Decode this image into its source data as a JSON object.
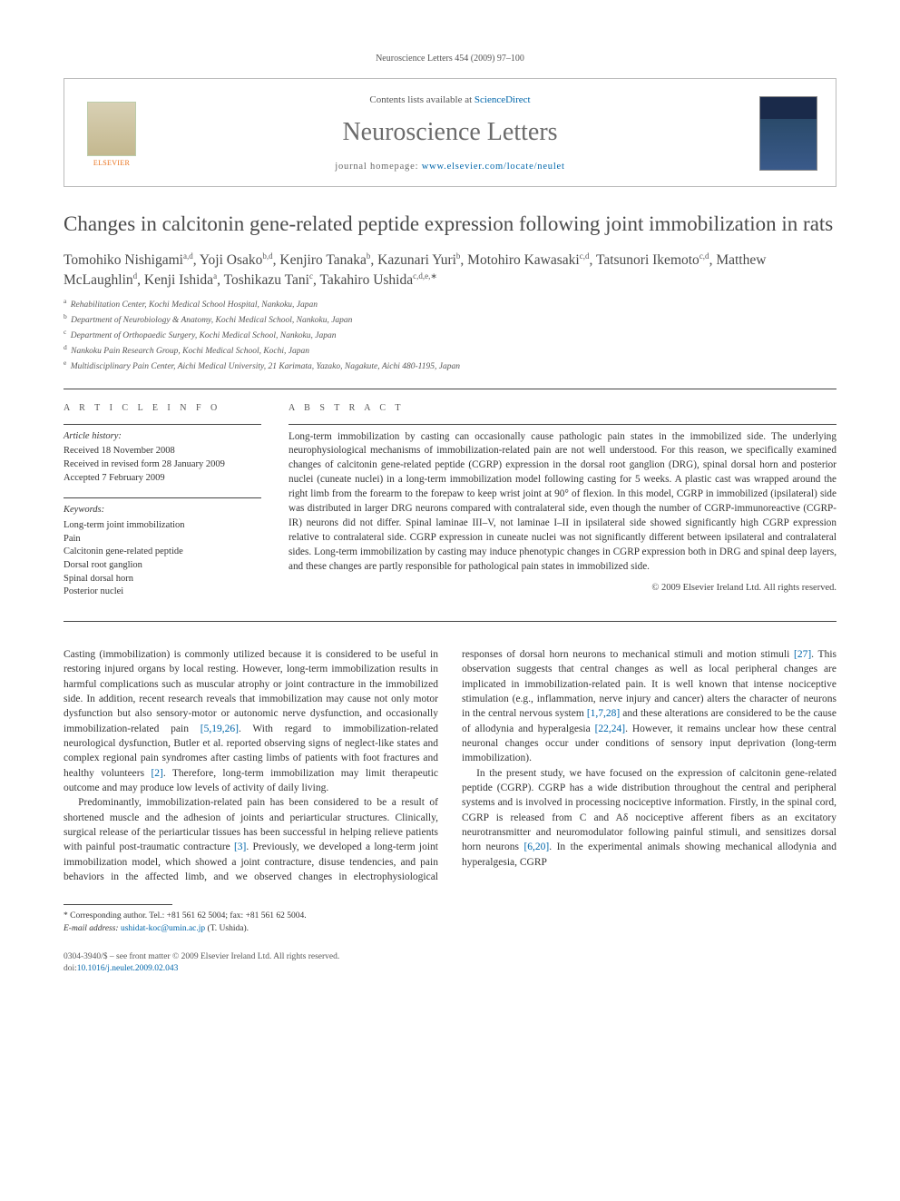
{
  "header_citation": "Neuroscience Letters 454 (2009) 97–100",
  "journal_box": {
    "contents_prefix": "Contents lists available at ",
    "contents_link": "ScienceDirect",
    "journal_name": "Neuroscience Letters",
    "homepage_prefix": "journal homepage: ",
    "homepage_link": "www.elsevier.com/locate/neulet",
    "publisher_label": "ELSEVIER"
  },
  "title": "Changes in calcitonin gene-related peptide expression following joint immobilization in rats",
  "authors_html": "Tomohiko Nishigami|a,d|, Yoji Osako|b,d|, Kenjiro Tanaka|b|, Kazunari Yuri|b|, Motohiro Kawasaki|c,d|, Tatsunori Ikemoto|c,d|, Matthew McLaughlin|d|, Kenji Ishida|a|, Toshikazu Tani|c|, Takahiro Ushida|c,d,e,*|",
  "affiliations": [
    {
      "sup": "a",
      "text": "Rehabilitation Center, Kochi Medical School Hospital, Nankoku, Japan"
    },
    {
      "sup": "b",
      "text": "Department of Neurobiology & Anatomy, Kochi Medical School, Nankoku, Japan"
    },
    {
      "sup": "c",
      "text": "Department of Orthopaedic Surgery, Kochi Medical School, Nankoku, Japan"
    },
    {
      "sup": "d",
      "text": "Nankoku Pain Research Group, Kochi Medical School, Kochi, Japan"
    },
    {
      "sup": "e",
      "text": "Multidisciplinary Pain Center, Aichi Medical University, 21 Karimata, Yazako, Nagakute, Aichi 480-1195, Japan"
    }
  ],
  "article_info": {
    "header": "A R T I C L E   I N F O",
    "history_label": "Article history:",
    "history": [
      "Received 18 November 2008",
      "Received in revised form 28 January 2009",
      "Accepted 7 February 2009"
    ],
    "keywords_label": "Keywords:",
    "keywords": [
      "Long-term joint immobilization",
      "Pain",
      "Calcitonin gene-related peptide",
      "Dorsal root ganglion",
      "Spinal dorsal horn",
      "Posterior nuclei"
    ]
  },
  "abstract": {
    "header": "A B S T R A C T",
    "text": "Long-term immobilization by casting can occasionally cause pathologic pain states in the immobilized side. The underlying neurophysiological mechanisms of immobilization-related pain are not well understood. For this reason, we specifically examined changes of calcitonin gene-related peptide (CGRP) expression in the dorsal root ganglion (DRG), spinal dorsal horn and posterior nuclei (cuneate nuclei) in a long-term immobilization model following casting for 5 weeks. A plastic cast was wrapped around the right limb from the forearm to the forepaw to keep wrist joint at 90° of flexion. In this model, CGRP in immobilized (ipsilateral) side was distributed in larger DRG neurons compared with contralateral side, even though the number of CGRP-immunoreactive (CGRP-IR) neurons did not differ. Spinal laminae III–V, not laminae I–II in ipsilateral side showed significantly high CGRP expression relative to contralateral side. CGRP expression in cuneate nuclei was not significantly different between ipsilateral and contralateral sides. Long-term immobilization by casting may induce phenotypic changes in CGRP expression both in DRG and spinal deep layers, and these changes are partly responsible for pathological pain states in immobilized side.",
    "copyright": "© 2009 Elsevier Ireland Ltd. All rights reserved."
  },
  "body": {
    "p1": "Casting (immobilization) is commonly utilized because it is considered to be useful in restoring injured organs by local resting. However, long-term immobilization results in harmful complications such as muscular atrophy or joint contracture in the immobilized side. In addition, recent research reveals that immobilization may cause not only motor dysfunction but also sensory-motor or autonomic nerve dysfunction, and occasionally immobilization-related pain ",
    "c1": "[5,19,26]",
    "p1b": ". With regard to immobilization-related neurological dysfunction, Butler et al. reported observing signs of neglect-like states and complex regional pain syndromes after casting limbs of patients with foot fractures and healthy volunteers ",
    "c2": "[2]",
    "p1c": ". Therefore, long-term immobilization may limit therapeutic outcome and may produce low levels of activity of daily living.",
    "p2": "Predominantly, immobilization-related pain has been considered to be a result of shortened muscle and the adhesion of joints and periarticular structures. Clinically, surgical release of the periarticular tissues has been successful in helping relieve patients with painful post-traumatic contracture ",
    "c3": "[3]",
    "p2b": ". Previously, we developed a long-term joint immobilization model, which showed a joint contracture, disuse tendencies, and pain behaviors in the affected limb, and we observed changes in electrophysiological responses of dorsal horn neurons to mechanical stimuli and motion stimuli ",
    "c4": "[27]",
    "p2c": ". This observation suggests that central changes as well as local peripheral changes are implicated in immobilization-related pain. It is well known that intense nociceptive stimulation (e.g., inflammation, nerve injury and cancer) alters the character of neurons in the central nervous system ",
    "c5": "[1,7,28]",
    "p2d": " and these alterations are considered to be the cause of allodynia and hyperalgesia ",
    "c6": "[22,24]",
    "p2e": ". However, it remains unclear how these central neuronal changes occur under conditions of sensory input deprivation (long-term immobilization).",
    "p3": "In the present study, we have focused on the expression of calcitonin gene-related peptide (CGRP). CGRP has a wide distribution throughout the central and peripheral systems and is involved in processing nociceptive information. Firstly, in the spinal cord, CGRP is released from C and Aδ nociceptive afferent fibers as an excitatory neurotransmitter and neuromodulator following painful stimuli, and sensitizes dorsal horn neurons ",
    "c7": "[6,20]",
    "p3b": ". In the experimental animals showing mechanical allodynia and hyperalgesia, CGRP"
  },
  "footnote": {
    "corr": "* Corresponding author. Tel.: +81 561 62 5004; fax: +81 561 62 5004.",
    "email_label": "E-mail address: ",
    "email": "ushidat-koc@umin.ac.jp",
    "email_suffix": " (T. Ushida)."
  },
  "footer": {
    "left1": "0304-3940/$ – see front matter © 2009 Elsevier Ireland Ltd. All rights reserved.",
    "left2_prefix": "doi:",
    "left2_link": "10.1016/j.neulet.2009.02.043"
  },
  "colors": {
    "link": "#0066aa",
    "text": "#333333",
    "heading": "#4a4a4a",
    "elsevier": "#e9711c"
  }
}
